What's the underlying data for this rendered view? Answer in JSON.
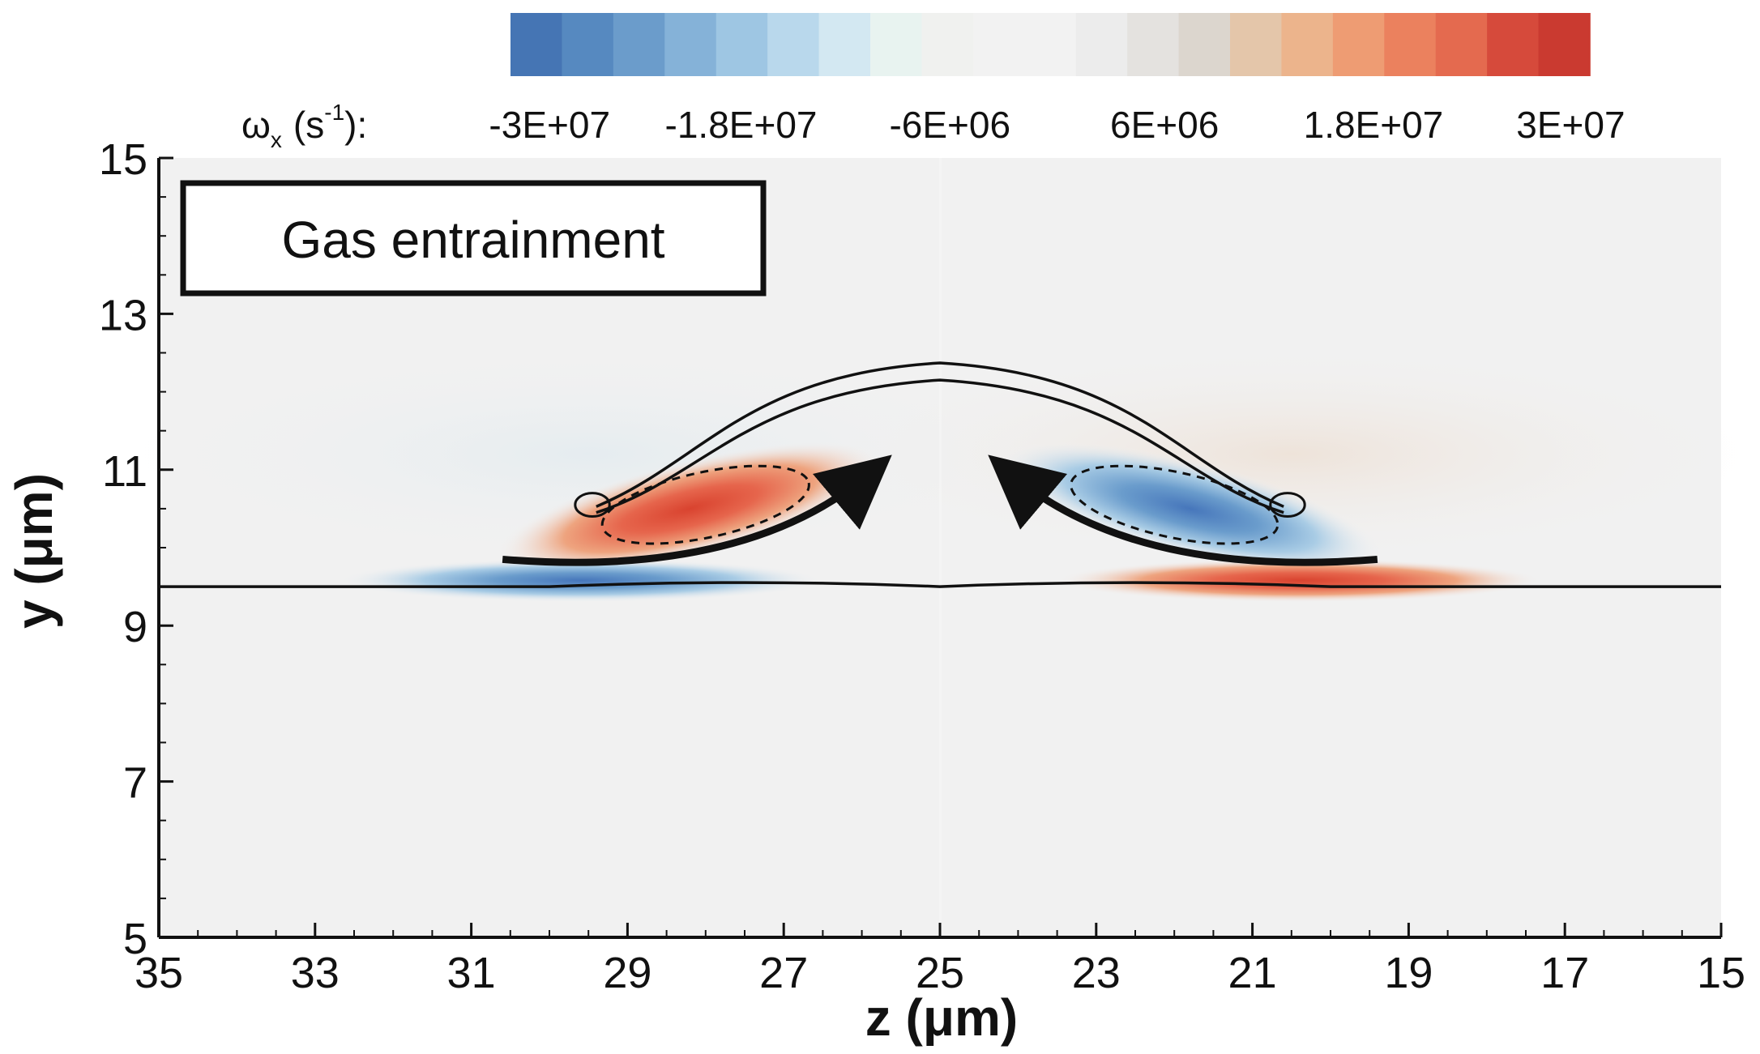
{
  "chart_data": {
    "type": "heatmap",
    "xlabel": "z (μm)",
    "ylabel": "y (μm)",
    "xlim": [
      35,
      15
    ],
    "ylim": [
      5,
      15
    ],
    "x_reversed": true,
    "x_ticks": [
      "35",
      "33",
      "31",
      "29",
      "27",
      "25",
      "23",
      "21",
      "19",
      "17",
      "15"
    ],
    "y_ticks": [
      "5",
      "7",
      "9",
      "11",
      "13",
      "15"
    ],
    "colorbar": {
      "label": "ωx (s-1):",
      "label_main": "ω",
      "label_sub": "x",
      "label_unit": "(s",
      "label_sup": "-1",
      "label_tail": "):",
      "range": [
        -30000000,
        30000000
      ],
      "tick_labels": [
        "-3E+07",
        "-1.8E+07",
        "-6E+06",
        "6E+06",
        "1.8E+07",
        "3E+07"
      ],
      "colors": [
        "#4575b4",
        "#5689c0",
        "#6b9ccb",
        "#85b2d8",
        "#9ec6e3",
        "#b9d8ec",
        "#d3e8f2",
        "#e8f3f0",
        "#f0f1ef",
        "#f2f2f2",
        "#f2f2f2",
        "#ececec",
        "#e4e2df",
        "#dcd6ce",
        "#e4c6aa",
        "#ecb48c",
        "#ee9c73",
        "#eb815e",
        "#e46a4f",
        "#d64a3b",
        "#ca3a30"
      ]
    },
    "annotation": "Gas entrainment",
    "interface_y": 9.5,
    "vortices": [
      {
        "z": 28.2,
        "y": 10.5,
        "sign": "positive",
        "peak": 30000000
      },
      {
        "z": 21.8,
        "y": 10.5,
        "sign": "negative",
        "peak": -30000000
      },
      {
        "z": 29.6,
        "y": 9.58,
        "sign": "negative",
        "peak": -20000000
      },
      {
        "z": 20.4,
        "y": 9.58,
        "sign": "positive",
        "peak": 20000000
      }
    ]
  }
}
